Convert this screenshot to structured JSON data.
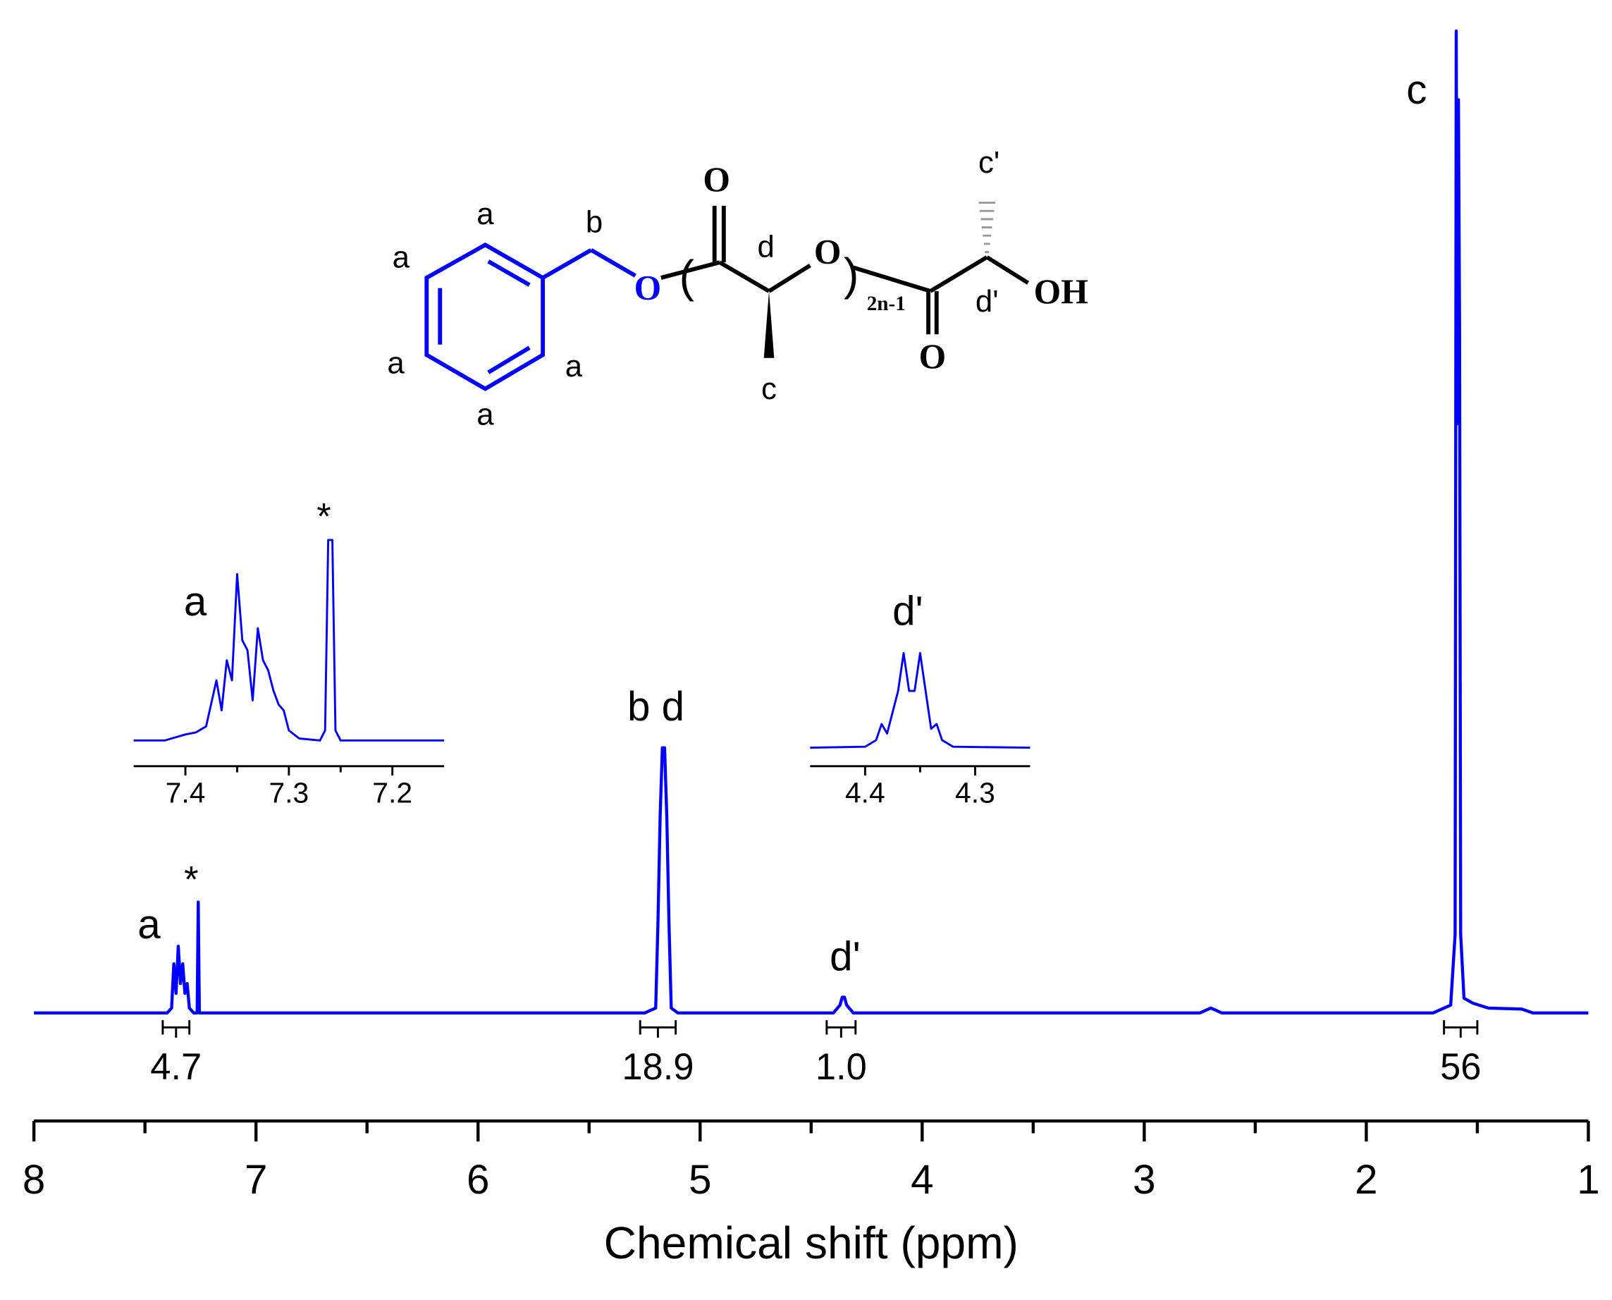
{
  "chart_data": [
    {
      "type": "line",
      "x_label": "Chemical shift (ppm)",
      "color": "#0000ff",
      "xlim": [
        8,
        1
      ],
      "xticks": [
        8,
        7,
        6,
        5,
        4,
        3,
        2,
        1
      ],
      "xminorticks": [
        7.5,
        6.5,
        5.5,
        4.5,
        3.5,
        2.5,
        1.5
      ],
      "ylim": [
        0,
        100
      ],
      "x": [
        8.0,
        7.4,
        7.38,
        7.37,
        7.36,
        7.35,
        7.34,
        7.33,
        7.32,
        7.31,
        7.3,
        7.28,
        7.265,
        7.26,
        7.255,
        5.25,
        5.2,
        5.19,
        5.18,
        5.17,
        5.16,
        5.15,
        5.14,
        5.13,
        5.1,
        4.4,
        4.37,
        4.36,
        4.35,
        4.34,
        4.31,
        2.75,
        2.7,
        2.65,
        1.7,
        1.62,
        1.6,
        1.595,
        1.59,
        1.585,
        1.58,
        1.575,
        1.56,
        1.52,
        1.45,
        1.3,
        1.25,
        1.0
      ],
      "values": [
        0,
        0,
        0.5,
        5,
        2,
        6.8,
        3,
        5,
        2,
        3,
        0.5,
        0,
        0,
        11.3,
        0,
        0,
        0.5,
        9,
        20,
        27,
        27,
        20,
        9,
        0.5,
        0,
        0,
        0.8,
        1.6,
        1.6,
        0.8,
        0,
        0,
        0.5,
        0,
        0,
        0.8,
        8,
        100,
        60,
        93,
        70,
        8,
        1.5,
        1,
        0.5,
        0.4,
        0,
        0
      ],
      "annotations": [
        "a",
        "*",
        "b d",
        "d'",
        "c"
      ],
      "integrals": [
        {
          "from": 7.42,
          "to": 7.3,
          "value": 4.7,
          "label": "4.7"
        },
        {
          "from": 5.27,
          "to": 5.11,
          "value": 18.9,
          "label": "18.9"
        },
        {
          "from": 4.43,
          "to": 4.3,
          "value": 1.0,
          "label": "1.0"
        },
        {
          "from": 1.65,
          "to": 1.5,
          "value": 56,
          "label": "56"
        }
      ]
    },
    {
      "type": "line",
      "color": "#0000ff",
      "xlim": [
        7.45,
        7.15
      ],
      "xticks": [
        7.4,
        7.3,
        7.2
      ],
      "xminorticks": [
        7.35,
        7.25
      ],
      "ylim": [
        0,
        100
      ],
      "x": [
        7.45,
        7.42,
        7.4,
        7.39,
        7.38,
        7.37,
        7.365,
        7.36,
        7.355,
        7.35,
        7.345,
        7.34,
        7.335,
        7.33,
        7.325,
        7.32,
        7.315,
        7.31,
        7.305,
        7.3,
        7.29,
        7.27,
        7.265,
        7.262,
        7.258,
        7.255,
        7.25,
        7.15
      ],
      "values": [
        0,
        0,
        3,
        4,
        7,
        30,
        15,
        40,
        30,
        83,
        50,
        45,
        20,
        56,
        40,
        35,
        25,
        18,
        15,
        5,
        1,
        0,
        5,
        100,
        100,
        5,
        0,
        0
      ],
      "annotations": [
        "a",
        "*"
      ]
    },
    {
      "type": "line",
      "color": "#0000ff",
      "xlim": [
        4.45,
        4.25
      ],
      "xticks": [
        4.4,
        4.3
      ],
      "xminorticks": [
        4.35
      ],
      "ylim": [
        0,
        100
      ],
      "x": [
        4.45,
        4.4,
        4.39,
        4.385,
        4.38,
        4.37,
        4.365,
        4.36,
        4.355,
        4.35,
        4.345,
        4.34,
        4.335,
        4.33,
        4.32,
        4.25
      ],
      "values": [
        0,
        1,
        8,
        25,
        15,
        60,
        100,
        60,
        60,
        100,
        60,
        20,
        25,
        8,
        1,
        0
      ],
      "annotations": [
        "d'"
      ]
    }
  ],
  "structure": {
    "labels": [
      "a",
      "a",
      "a",
      "a",
      "a",
      "b",
      "O",
      "(",
      "O",
      "d",
      "c",
      "O",
      ")",
      "2n-1",
      "c'",
      "d'",
      "O",
      "OH"
    ]
  }
}
